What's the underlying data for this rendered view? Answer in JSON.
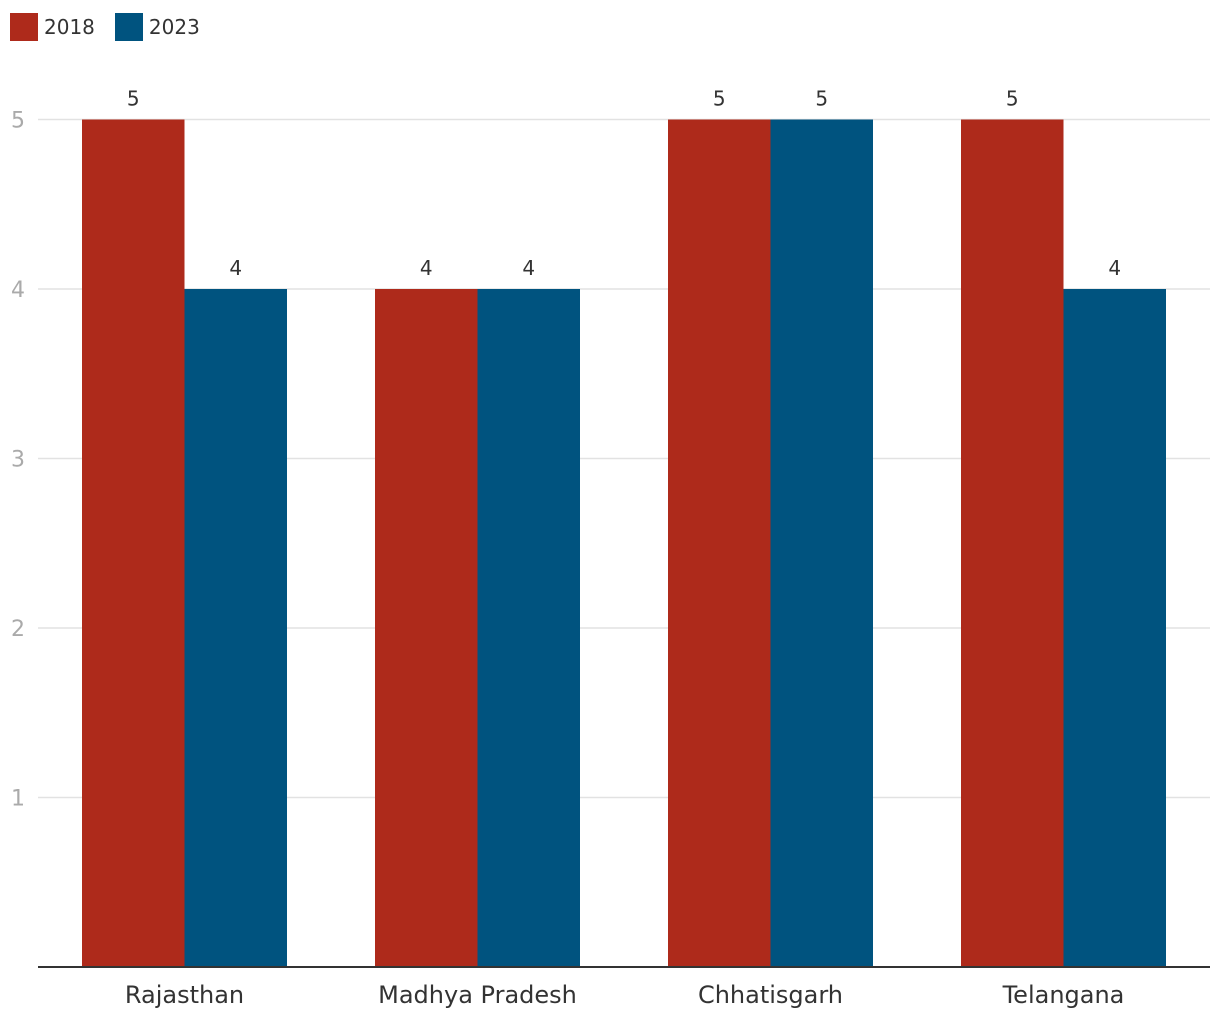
{
  "chart_data": {
    "type": "bar",
    "title": "",
    "xlabel": "",
    "ylabel": "",
    "categories": [
      "Rajasthan",
      "Madhya Pradesh",
      "Chhatisgarh",
      "Telangana"
    ],
    "series": [
      {
        "name": "2018",
        "values": [
          5,
          4,
          5,
          5
        ],
        "color": "#ae2a1b"
      },
      {
        "name": "2023",
        "values": [
          4,
          4,
          5,
          4
        ],
        "color": "#00537f"
      }
    ],
    "y_ticks": [
      "1",
      "2",
      "3",
      "4",
      "5"
    ],
    "ylim": [
      0,
      5
    ],
    "grid": true,
    "legend_position": "top-left",
    "data_labels": true
  }
}
